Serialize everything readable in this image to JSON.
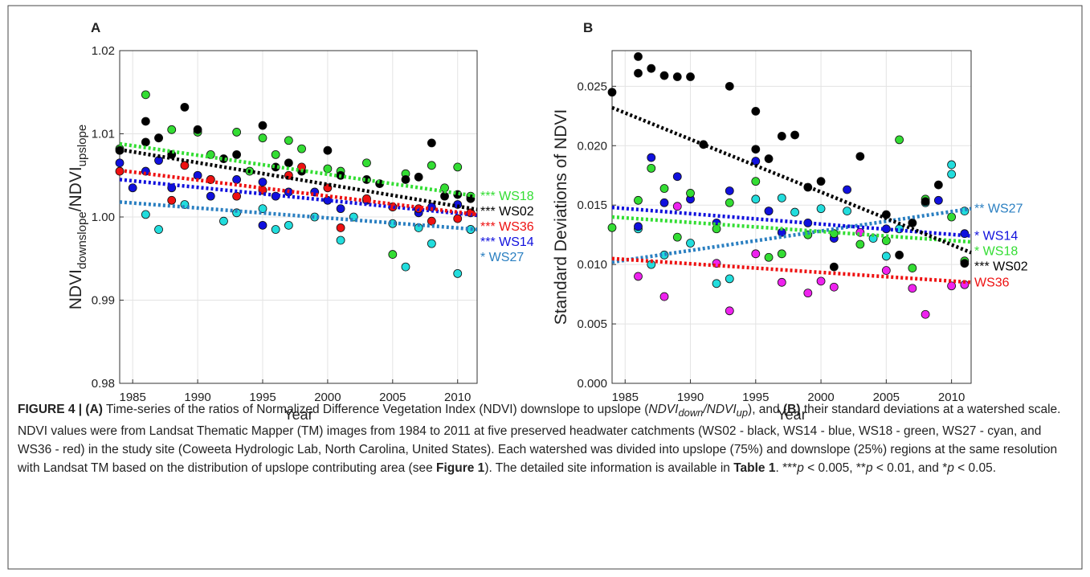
{
  "chart_data": [
    {
      "type": "scatter",
      "panel": "A",
      "xlabel": "Year",
      "ylabel": [
        "NDVI",
        "downslope",
        "/NDVI",
        "upslope"
      ],
      "xlim": [
        1984,
        2011.5
      ],
      "ylim": [
        0.98,
        1.02
      ],
      "xticks": [
        1985,
        1990,
        1995,
        2000,
        2005,
        2010
      ],
      "yticks": [
        0.98,
        0.99,
        {
          "value": 1,
          "label": "1.00"
        },
        1.01,
        1.02
      ],
      "grid": true,
      "trend_x": [
        1984,
        2011.5
      ],
      "series": [
        {
          "name": "*** WS18",
          "color": "#33dd33",
          "line_color": "#33dd33",
          "trend": [
            1.0088,
            1.0025
          ],
          "x": [
            1984,
            1986,
            1987,
            1988,
            1990,
            1991,
            1993,
            1994,
            1995,
            1996,
            1997,
            1998,
            2000,
            2001,
            2003,
            2005,
            2006,
            2008,
            2009,
            2010,
            2011
          ],
          "values": [
            1.0082,
            1.0147,
            1.0095,
            1.0105,
            1.0102,
            1.0075,
            1.0102,
            1.0055,
            1.0095,
            1.0075,
            1.0092,
            1.0082,
            1.0058,
            1.0055,
            1.0065,
            0.9955,
            1.0052,
            1.0062,
            1.0035,
            1.006,
            1.0025
          ]
        },
        {
          "name": "*** WS02",
          "color": "#000000",
          "line_color": "#000000",
          "trend": [
            1.0081,
            1.0009
          ],
          "x": [
            1984,
            1986,
            1986,
            1987,
            1988,
            1989,
            1990,
            1991,
            1992,
            1993,
            1995,
            1996,
            1997,
            1998,
            2000,
            2001,
            2003,
            2004,
            2006,
            2007,
            2008,
            2009,
            2010,
            2011
          ],
          "values": [
            1.008,
            1.0115,
            1.009,
            1.0095,
            1.0075,
            1.0132,
            1.0105,
            1.0045,
            1.007,
            1.0075,
            1.011,
            1.006,
            1.0065,
            1.0055,
            1.008,
            1.005,
            1.0045,
            1.004,
            1.0045,
            1.0048,
            1.0089,
            1.0025,
            1.0027,
            1.0022
          ]
        },
        {
          "name": "*** WS14",
          "color": "#1010dd",
          "line_color": "#1010dd",
          "trend": [
            1.0045,
            1.0002
          ],
          "x": [
            1984,
            1985,
            1986,
            1987,
            1988,
            1990,
            1991,
            1993,
            1995,
            1995,
            1996,
            1997,
            1999,
            2000,
            2001,
            2003,
            2005,
            2007,
            2008,
            2010,
            2011
          ],
          "values": [
            1.0065,
            1.0035,
            1.0055,
            1.0068,
            1.0035,
            1.005,
            1.0025,
            1.0045,
            1.0042,
            0.999,
            1.0025,
            1.003,
            1.003,
            1.002,
            1.001,
            1.002,
            1.0012,
            1.0005,
            1.0012,
            1.0015,
            0.9985
          ]
        },
        {
          "name": "*** WS36",
          "color": "#ee1111",
          "line_color": "#ee1111",
          "trend": [
            1.0056,
            1.0003
          ],
          "x": [
            1984,
            1988,
            1989,
            1991,
            1993,
            1995,
            1997,
            1998,
            2000,
            2001,
            2003,
            2005,
            2007,
            2008,
            2010,
            2011
          ],
          "values": [
            1.0055,
            1.002,
            1.0062,
            1.0045,
            1.0025,
            1.0032,
            1.005,
            1.006,
            1.0035,
            0.9987,
            1.0022,
            1.0012,
            1.001,
            0.9995,
            0.9998,
            1.0005
          ]
        },
        {
          "name": "* WS27",
          "color": "#22dddd",
          "line_color": "#2a7fc1",
          "trend": [
            1.0018,
            0.9985
          ],
          "x": [
            1986,
            1987,
            1989,
            1992,
            1993,
            1995,
            1996,
            1997,
            1999,
            2001,
            2002,
            2005,
            2006,
            2007,
            2008,
            2010,
            2011
          ],
          "values": [
            1.0003,
            0.9985,
            1.0015,
            0.9995,
            1.0005,
            1.001,
            0.9985,
            0.999,
            1.0,
            0.9972,
            1.0,
            0.9992,
            0.994,
            0.9987,
            0.9968,
            0.9932,
            0.9985
          ]
        }
      ]
    },
    {
      "type": "scatter",
      "panel": "B",
      "xlabel": "Year",
      "ylabel": "Standard Deviations of NDVI",
      "xlim": [
        1984,
        2011.5
      ],
      "ylim": [
        0,
        0.028
      ],
      "xticks": [
        1985,
        1990,
        1995,
        2000,
        2005,
        2010
      ],
      "yticks": [
        {
          "value": 0,
          "label": "0.000"
        },
        0.005,
        {
          "value": 0.01,
          "label": "0.010"
        },
        0.015,
        {
          "value": 0.02,
          "label": "0.020"
        },
        0.025
      ],
      "grid": true,
      "trend_x": [
        1984,
        2011.5
      ],
      "series": [
        {
          "name": "** WS27",
          "color": "#22dddd",
          "line_color": "#2a7fc1",
          "trend": [
            0.0102,
            0.0147
          ],
          "x": [
            1986,
            1987,
            1988,
            1990,
            1992,
            1993,
            1995,
            1996,
            1997,
            1998,
            2000,
            2002,
            2004,
            2005,
            2006,
            2008,
            2010,
            2010,
            2011
          ],
          "values": [
            0.013,
            0.01,
            0.0108,
            0.0118,
            0.0084,
            0.0088,
            0.0155,
            0.0145,
            0.0156,
            0.0144,
            0.0147,
            0.0145,
            0.0122,
            0.0107,
            0.013,
            0.0152,
            0.0184,
            0.0176,
            0.0145
          ]
        },
        {
          "name": "* WS14",
          "color": "#1010dd",
          "line_color": "#1010dd",
          "trend": [
            0.0148,
            0.0124
          ],
          "x": [
            1986,
            1987,
            1988,
            1989,
            1990,
            1992,
            1993,
            1995,
            1996,
            1997,
            1999,
            2001,
            2002,
            2005,
            2007,
            2009,
            2011
          ],
          "values": [
            0.0132,
            0.019,
            0.0152,
            0.0174,
            0.0155,
            0.0135,
            0.0162,
            0.0187,
            0.0145,
            0.0127,
            0.0135,
            0.0122,
            0.0163,
            0.013,
            0.0135,
            0.0154,
            0.0126
          ]
        },
        {
          "name": "* WS18",
          "color": "#33dd33",
          "line_color": "#33dd33",
          "trend": [
            0.014,
            0.0119
          ],
          "x": [
            1984,
            1986,
            1987,
            1988,
            1989,
            1990,
            1992,
            1993,
            1995,
            1996,
            1997,
            1999,
            2001,
            2003,
            2005,
            2006,
            2007,
            2008,
            2010,
            2011
          ],
          "values": [
            0.0131,
            0.0154,
            0.0181,
            0.0164,
            0.0123,
            0.016,
            0.013,
            0.0152,
            0.017,
            0.0106,
            0.0109,
            0.0125,
            0.0126,
            0.0117,
            0.012,
            0.0205,
            0.0097,
            0.0155,
            0.014,
            0.0103
          ]
        },
        {
          "name": "*** WS02",
          "color": "#000000",
          "line_color": "#000000",
          "trend": [
            0.0232,
            0.011
          ],
          "x": [
            1984,
            1986,
            1986,
            1987,
            1988,
            1989,
            1990,
            1991,
            1993,
            1995,
            1995,
            1996,
            1997,
            1998,
            1999,
            2000,
            2001,
            2003,
            2005,
            2006,
            2007,
            2008,
            2009,
            2011
          ],
          "values": [
            0.0245,
            0.0275,
            0.0261,
            0.0265,
            0.0259,
            0.0258,
            0.0258,
            0.0201,
            0.025,
            0.0229,
            0.0197,
            0.0189,
            0.0208,
            0.0209,
            0.0165,
            0.017,
            0.0098,
            0.0191,
            0.0142,
            0.0108,
            0.0135,
            0.0153,
            0.0167,
            0.0101
          ]
        },
        {
          "name": "WS36",
          "color": "#ee22ee",
          "line_color": "#ee1111",
          "trend": [
            0.0105,
            0.0085
          ],
          "x": [
            1986,
            1988,
            1989,
            1992,
            1993,
            1995,
            1997,
            1999,
            2000,
            2001,
            2003,
            2005,
            2007,
            2008,
            2010,
            2011
          ],
          "values": [
            0.009,
            0.0073,
            0.0149,
            0.0101,
            0.0061,
            0.0109,
            0.0085,
            0.0076,
            0.0086,
            0.0081,
            0.0127,
            0.0095,
            0.008,
            0.0058,
            0.0082,
            0.0083
          ]
        }
      ]
    }
  ],
  "caption": [
    "FIGURE 4 | (A)",
    " Time-series of the ratios of Normalized Difference Vegetation Index (NDVI) downslope to upslope (",
    "NDVI",
    "down",
    "/NDVI",
    "up",
    "), and ",
    "(B)",
    " their standard deviations at a watershed scale. NDVI values were from Landsat Thematic Mapper (TM) images from 1984 to 2011 at five preserved headwater catchments (WS02 - black, WS14 - blue, WS18 - green, WS27 - cyan, and WS36 - red) in the study site (Coweeta Hydrologic Lab, North Carolina, United States). Each watershed was divided into upslope (75%) and downslope (25%) regions at the same resolution with Landsat TM based on the distribution of upslope contributing area (see ",
    "Figure 1",
    "). The detailed site information is available in ",
    "Table 1",
    ". ***",
    "p",
    " < 0.005, **",
    "p",
    " < 0.01, and *",
    "p",
    " < 0.05."
  ]
}
